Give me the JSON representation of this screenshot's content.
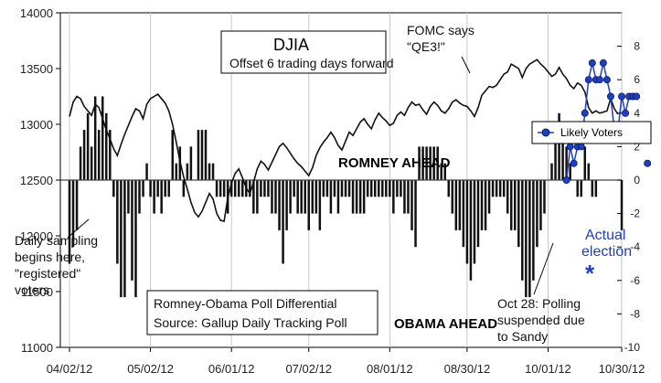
{
  "chart_data": {
    "type": "line+bar",
    "title_box": {
      "title": "DJIA",
      "subtitle": "Offset 6 trading days forward"
    },
    "source_box": {
      "line1": "Romney-Obama Poll Differential",
      "line2": "Source: Gallup Daily Tracking Poll"
    },
    "left_axis": {
      "range": [
        11000,
        14000
      ],
      "ticks": [
        "11000",
        "11500",
        "12000",
        "12500",
        "13000",
        "13500",
        "14000"
      ]
    },
    "right_axis": {
      "range": [
        -10,
        10
      ],
      "ticks": [
        "-10",
        "-8",
        "-6",
        "-4",
        "-2",
        "0",
        "2",
        "4",
        "6",
        "8"
      ]
    },
    "x_axis": {
      "labels": [
        "04/02/12",
        "05/02/12",
        "06/01/12",
        "07/02/12",
        "08/01/12",
        "08/30/12",
        "10/01/12",
        "10/30/12"
      ],
      "label_index": [
        0,
        22,
        44,
        65,
        87,
        108,
        130,
        150
      ]
    },
    "djia": {
      "name": "DJIA",
      "values": [
        13070,
        13200,
        13250,
        13230,
        13160,
        13120,
        13080,
        13180,
        13150,
        13050,
        12950,
        12870,
        12780,
        12720,
        12820,
        12910,
        12990,
        13070,
        13140,
        13120,
        13050,
        13180,
        13230,
        13250,
        13270,
        13230,
        13190,
        13120,
        13000,
        12840,
        12670,
        12530,
        12420,
        12300,
        12210,
        12170,
        12220,
        12300,
        12380,
        12330,
        12200,
        12140,
        12130,
        12340,
        12470,
        12560,
        12600,
        12520,
        12430,
        12380,
        12480,
        12600,
        12670,
        12640,
        12590,
        12660,
        12730,
        12800,
        12830,
        12790,
        12740,
        12690,
        12650,
        12620,
        12580,
        12540,
        12610,
        12720,
        12790,
        12840,
        12880,
        12930,
        12880,
        12810,
        12770,
        12850,
        12930,
        12900,
        12960,
        13020,
        13050,
        13000,
        12960,
        13040,
        13100,
        13060,
        13030,
        12990,
        13010,
        13080,
        13110,
        13080,
        13150,
        13200,
        13170,
        13180,
        13130,
        13090,
        13160,
        13200,
        13170,
        13120,
        13100,
        13140,
        13200,
        13220,
        13190,
        13170,
        13160,
        13120,
        13070,
        13150,
        13260,
        13300,
        13340,
        13330,
        13350,
        13400,
        13450,
        13470,
        13540,
        13520,
        13500,
        13420,
        13500,
        13540,
        13560,
        13580,
        13540,
        13510,
        13470,
        13430,
        13450,
        13510,
        13450,
        13410,
        13350,
        13320,
        13370,
        13350,
        13290,
        13150,
        13100,
        13120,
        13100,
        13110,
        13120,
        13230,
        13140,
        13090
      ]
    },
    "poll_differential_registered": {
      "name": "Romney-Obama Poll Differential",
      "values": [
        -5,
        -4,
        -3,
        2,
        3,
        4,
        2,
        5,
        3,
        5,
        4,
        3,
        -1,
        -5,
        -7,
        -7,
        -2,
        -6,
        -7,
        -2,
        -1,
        1,
        -1,
        -2,
        -1,
        -2,
        -1,
        -1,
        3,
        1,
        2,
        -1,
        1,
        2,
        0,
        3,
        3,
        3,
        1,
        1,
        -1,
        -1,
        -1,
        -2,
        -1,
        -1,
        -1,
        -1,
        -1,
        -1,
        -2,
        -2,
        -1,
        -1,
        -1,
        -2,
        -2,
        -3,
        -5,
        -3,
        -2,
        -1,
        -2,
        -2,
        -2,
        -3,
        -2,
        -2,
        -3,
        -1,
        -1,
        -2,
        -1,
        -2,
        -1,
        -1,
        -1,
        -2,
        -2,
        -2,
        -2,
        -1,
        -1,
        -1,
        -1,
        -1,
        -1,
        -1,
        -2,
        -1,
        -1,
        -2,
        -2,
        -3,
        -4,
        2,
        2,
        2,
        2,
        2,
        2,
        1,
        1,
        -1,
        -2,
        -3,
        -3,
        -4,
        -5,
        -6,
        -5,
        -4,
        -3,
        -3,
        -2,
        -1,
        -1,
        -1,
        -1,
        -2,
        -3,
        -3,
        -4,
        -6,
        -7,
        -7,
        -6,
        -4,
        -3,
        -2,
        0,
        1,
        3,
        4,
        3,
        2,
        1,
        0,
        -1,
        -1,
        2,
        1,
        -1,
        -1,
        null,
        null,
        null,
        null,
        null,
        null,
        -3
      ]
    },
    "likely_voters": {
      "name": "Likely Voters",
      "color": "#1f3fbf",
      "points": [
        [
          135,
          0
        ],
        [
          136,
          2
        ],
        [
          137,
          1
        ],
        [
          138,
          2
        ],
        [
          139,
          2
        ],
        [
          140,
          4
        ],
        [
          141,
          6
        ],
        [
          142,
          7
        ],
        [
          143,
          6
        ],
        [
          144,
          6
        ],
        [
          145,
          7
        ],
        [
          146,
          6
        ],
        [
          147,
          5
        ],
        [
          148,
          3
        ],
        [
          149,
          3
        ],
        [
          150,
          5
        ],
        [
          151,
          4
        ],
        [
          152,
          5
        ],
        [
          153,
          5
        ],
        [
          154,
          5
        ],
        [
          157,
          1
        ]
      ]
    },
    "labels": {
      "romney_ahead": "ROMNEY AHEAD",
      "obama_ahead": "OBAMA AHEAD",
      "fomc": [
        "FOMC says",
        "\"QE3!\""
      ],
      "daily_sampling": [
        "Daily sampling",
        "begins here,",
        "\"registered\"",
        "voters"
      ],
      "oct28": [
        "Oct 28: Polling",
        "suspended due",
        "to Sandy"
      ],
      "actual": [
        "Actual",
        "election"
      ],
      "asterisk": "*",
      "legend_label": "Likely Voters"
    }
  }
}
